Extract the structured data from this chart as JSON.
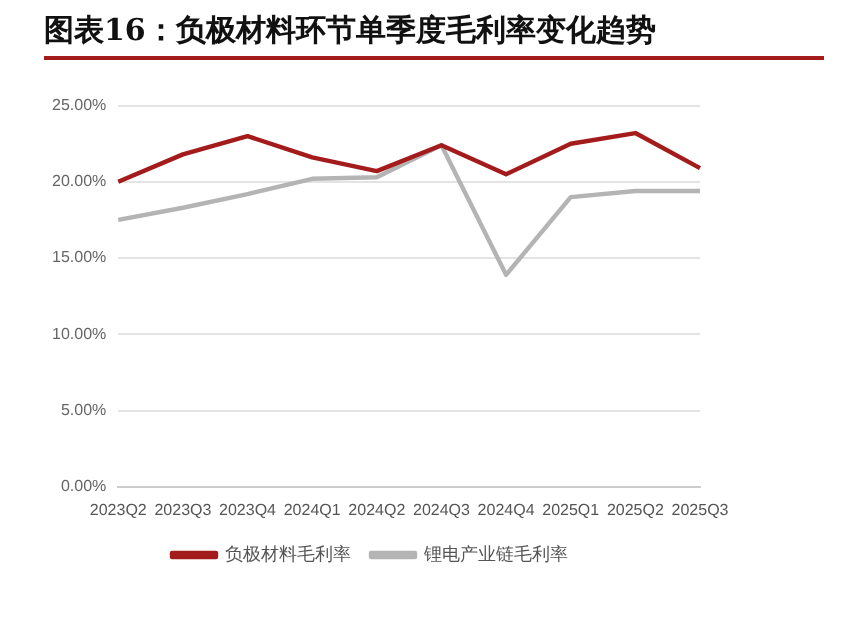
{
  "chart_data": {
    "type": "line",
    "title": "图表16：负极材料环节单季度毛利率变化趋势",
    "categories": [
      "2023Q2",
      "2023Q3",
      "2023Q4",
      "2024Q1",
      "2024Q2",
      "2024Q3",
      "2024Q4",
      "2025Q1",
      "2025Q2",
      "2025Q3"
    ],
    "series": [
      {
        "name": "负极材料毛利率",
        "color": "#a31b1b",
        "values": [
          20.0,
          21.8,
          23.0,
          21.6,
          20.7,
          22.4,
          20.5,
          22.5,
          23.2,
          20.9
        ]
      },
      {
        "name": "锂电产业链毛利率",
        "color": "#b4b4b4",
        "values": [
          17.5,
          18.3,
          19.2,
          20.2,
          20.3,
          22.4,
          13.9,
          19.0,
          19.4,
          19.4
        ]
      }
    ],
    "ylim": [
      0,
      25
    ],
    "yticks": [
      {
        "value": 0,
        "label": "0.00%"
      },
      {
        "value": 5,
        "label": "5.00%"
      },
      {
        "value": 10,
        "label": "10.00%"
      },
      {
        "value": 15,
        "label": "15.00%"
      },
      {
        "value": 20,
        "label": "20.00%"
      },
      {
        "value": 25,
        "label": "25.00%"
      }
    ],
    "grid": "y",
    "legend": "bottom",
    "marker": "none",
    "line_style": "solid"
  }
}
